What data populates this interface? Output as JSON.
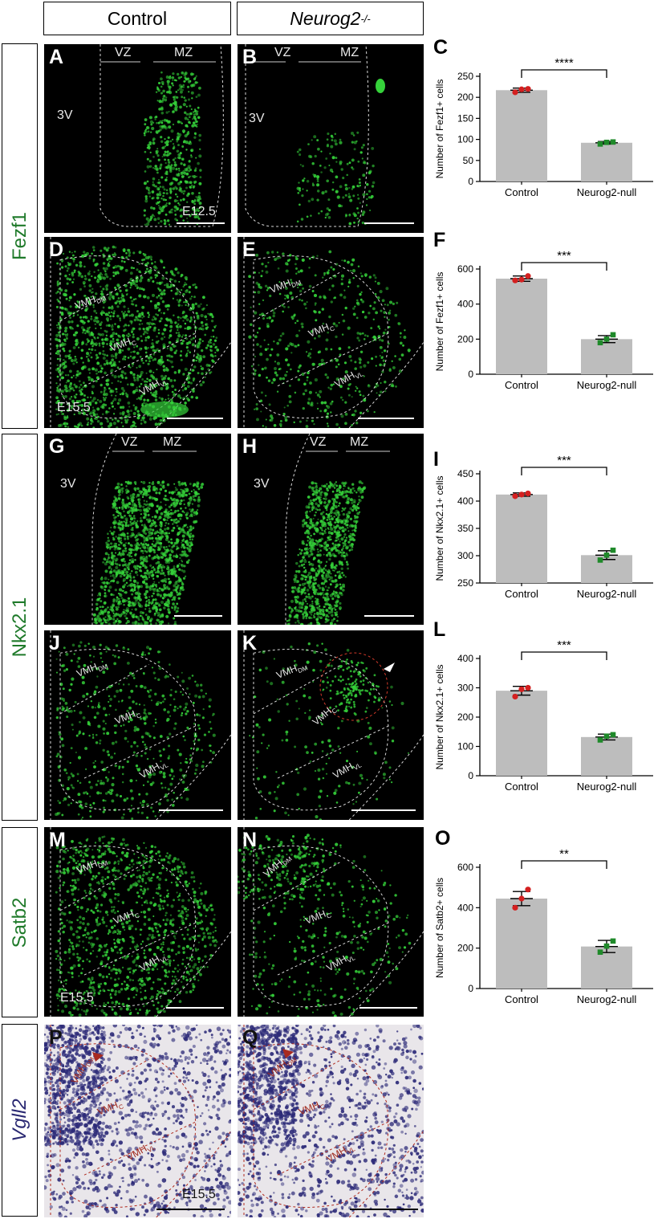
{
  "column_headers": {
    "control": "Control",
    "mutant": "Neurog2",
    "mutant_sup": "-/-"
  },
  "row_labels": {
    "fezf1": "Fezf1",
    "nkx21": "Nkx2.1",
    "satb2": "Satb2",
    "vgll2": "Vgll2"
  },
  "panels": {
    "A": {
      "letter": "A",
      "vz": "VZ",
      "mz": "MZ",
      "ventricle": "3V",
      "stage": "E12.5"
    },
    "B": {
      "letter": "B",
      "vz": "VZ",
      "mz": "MZ",
      "ventricle": "3V"
    },
    "D": {
      "letter": "D",
      "dm": "VMH",
      "dm_sub": "DM",
      "c": "VMH",
      "c_sub": "C",
      "vl": "VMH",
      "vl_sub": "VL",
      "stage": "E15.5"
    },
    "E": {
      "letter": "E",
      "dm": "VMH",
      "dm_sub": "DM",
      "c": "VMH",
      "c_sub": "C",
      "vl": "VMH",
      "vl_sub": "VL"
    },
    "G": {
      "letter": "G",
      "vz": "VZ",
      "mz": "MZ",
      "ventricle": "3V"
    },
    "H": {
      "letter": "H",
      "vz": "VZ",
      "mz": "MZ",
      "ventricle": "3V"
    },
    "J": {
      "letter": "J",
      "dm": "VMH",
      "dm_sub": "DM",
      "c": "VMH",
      "c_sub": "C",
      "vl": "VMH",
      "vl_sub": "VL"
    },
    "K": {
      "letter": "K",
      "dm": "VMH",
      "dm_sub": "DM",
      "c": "VMH",
      "c_sub": "C",
      "vl": "VMH",
      "vl_sub": "VL"
    },
    "M": {
      "letter": "M",
      "dm": "VMH",
      "dm_sub": "DM",
      "c": "VMH",
      "c_sub": "C",
      "vl": "VMH",
      "vl_sub": "VL",
      "stage": "E15.5"
    },
    "N": {
      "letter": "N",
      "dm": "VMH",
      "dm_sub": "DM",
      "c": "VMH",
      "c_sub": "C",
      "vl": "VMH",
      "vl_sub": "VL"
    },
    "P": {
      "letter": "P",
      "dm": "VMH",
      "dm_sub": "DM",
      "c": "VMH",
      "c_sub": "C",
      "vl": "VMH",
      "vl_sub": "VL",
      "stage": "E15.5"
    },
    "Q": {
      "letter": "Q",
      "dm": "VMH",
      "dm_sub": "DM",
      "c": "VMH",
      "c_sub": "C",
      "vl": "VMH",
      "vl_sub": "VL"
    }
  },
  "colors": {
    "control_point": "#d42020",
    "mutant_point": "#1f8a2a",
    "bar": "#bdbdbd",
    "fluor": "#35d23a",
    "ish": "#2c2a78"
  },
  "chart_data": [
    {
      "letter": "C",
      "type": "bar",
      "categories": [
        "Control",
        "Neurog2-null"
      ],
      "values": [
        217,
        92
      ],
      "errors": [
        5,
        3
      ],
      "points": [
        [
          212,
          219,
          220
        ],
        [
          89,
          93,
          94
        ]
      ],
      "ylabel": "Number of Fezf1+ cells",
      "ylim": [
        0,
        250
      ],
      "yticks": [
        0,
        50,
        100,
        150,
        200,
        250
      ],
      "significance": "****"
    },
    {
      "letter": "F",
      "type": "bar",
      "categories": [
        "Control",
        "Neurog2-null"
      ],
      "values": [
        545,
        200
      ],
      "errors": [
        15,
        20
      ],
      "points": [
        [
          535,
          540,
          560
        ],
        [
          180,
          200,
          225
        ]
      ],
      "ylabel": "Number of Fezf1+ cells",
      "ylim": [
        0,
        600
      ],
      "yticks": [
        0,
        200,
        400,
        600
      ],
      "significance": "***"
    },
    {
      "letter": "I",
      "type": "bar",
      "categories": [
        "Control",
        "Neurog2-null"
      ],
      "values": [
        412,
        301
      ],
      "errors": [
        3,
        8
      ],
      "points": [
        [
          409,
          412,
          414
        ],
        [
          292,
          301,
          310
        ]
      ],
      "ylabel": "Number of Nkx2.1+ cells",
      "ylim": [
        250,
        450
      ],
      "yticks": [
        250,
        300,
        350,
        400,
        450
      ],
      "significance": "***"
    },
    {
      "letter": "L",
      "type": "bar",
      "categories": [
        "Control",
        "Neurog2-null"
      ],
      "values": [
        290,
        132
      ],
      "errors": [
        15,
        10
      ],
      "points": [
        [
          270,
          295,
          300
        ],
        [
          122,
          135,
          140
        ]
      ],
      "ylabel": "Number of Nkx2.1+ cells",
      "ylim": [
        0,
        400
      ],
      "yticks": [
        0,
        100,
        200,
        300,
        400
      ],
      "significance": "***"
    },
    {
      "letter": "O",
      "type": "bar",
      "categories": [
        "Control",
        "Neurog2-null"
      ],
      "values": [
        445,
        208
      ],
      "errors": [
        35,
        30
      ],
      "points": [
        [
          400,
          445,
          490
        ],
        [
          180,
          210,
          235
        ]
      ],
      "ylabel": "Number of Satb2+ cells",
      "ylim": [
        0,
        600
      ],
      "yticks": [
        0,
        200,
        400,
        600
      ],
      "significance": "**"
    }
  ]
}
